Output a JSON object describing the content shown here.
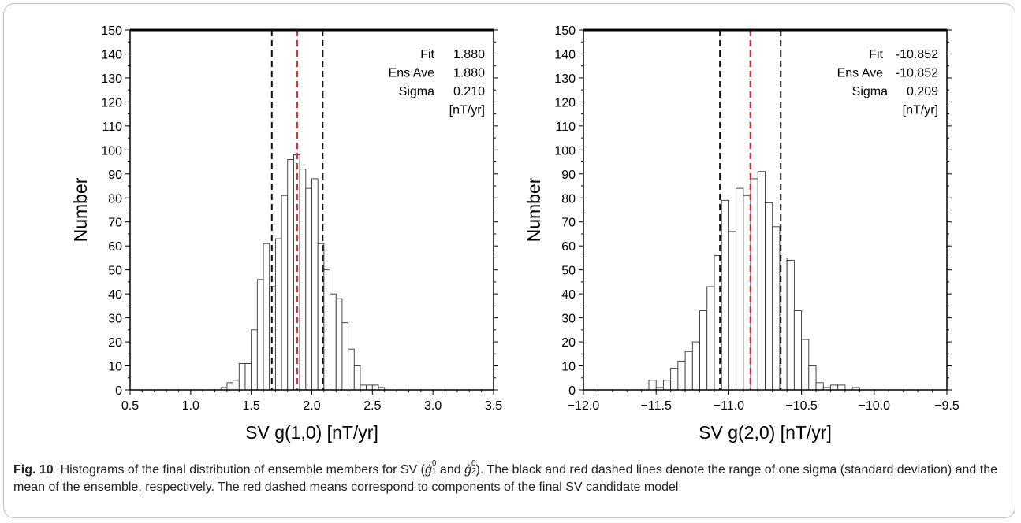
{
  "chart_data": [
    {
      "type": "bar",
      "x_min": 0.5,
      "x_max": 3.5,
      "xticks": [
        "0.5",
        "1.0",
        "1.5",
        "2.0",
        "2.5",
        "3.0",
        "3.5"
      ],
      "ylim": [
        0,
        150
      ],
      "yticks": [
        "0",
        "10",
        "20",
        "30",
        "40",
        "50",
        "60",
        "70",
        "80",
        "90",
        "100",
        "110",
        "120",
        "130",
        "140",
        "150"
      ],
      "xlabel": "SV g(1,0) [nT/yr]",
      "ylabel": "Number",
      "bin_width": 0.05,
      "bin_starts": [
        1.25,
        1.3,
        1.35,
        1.4,
        1.45,
        1.5,
        1.55,
        1.6,
        1.65,
        1.7,
        1.75,
        1.8,
        1.85,
        1.9,
        1.95,
        2.0,
        2.05,
        2.1,
        2.15,
        2.2,
        2.25,
        2.3,
        2.35,
        2.4,
        2.45,
        2.5,
        2.55
      ],
      "values": [
        1,
        3,
        4,
        11,
        11,
        25,
        46,
        61,
        43,
        63,
        81,
        96,
        98,
        92,
        84,
        88,
        61,
        50,
        40,
        38,
        28,
        17,
        10,
        2,
        2,
        2,
        1
      ],
      "lines": [
        {
          "x": 1.67,
          "color": "black",
          "style": "dashed",
          "meaning": "mean - sigma"
        },
        {
          "x": 1.88,
          "color": "red",
          "style": "dashed",
          "meaning": "mean"
        },
        {
          "x": 2.09,
          "color": "black",
          "style": "dashed",
          "meaning": "mean + sigma"
        }
      ],
      "annotation": {
        "rows": [
          [
            "Fit",
            "1.880"
          ],
          [
            "Ens Ave",
            "1.880"
          ],
          [
            "Sigma",
            "0.210"
          ]
        ],
        "unit": "[nT/yr]"
      }
    },
    {
      "type": "bar",
      "x_min": -12.0,
      "x_max": -9.5,
      "xticks": [
        "−12.0",
        "−11.5",
        "−11.0",
        "−10.5",
        "−10.0",
        "−9.5"
      ],
      "ylim": [
        0,
        150
      ],
      "yticks": [
        "0",
        "10",
        "20",
        "30",
        "40",
        "50",
        "60",
        "70",
        "80",
        "90",
        "100",
        "110",
        "120",
        "130",
        "140",
        "150"
      ],
      "xlabel": "SV g(2,0) [nT/yr]",
      "ylabel": "Number",
      "bin_width": 0.05,
      "bin_starts": [
        -11.55,
        -11.5,
        -11.45,
        -11.4,
        -11.35,
        -11.3,
        -11.25,
        -11.2,
        -11.15,
        -11.1,
        -11.05,
        -11.0,
        -10.95,
        -10.9,
        -10.85,
        -10.8,
        -10.75,
        -10.7,
        -10.65,
        -10.6,
        -10.55,
        -10.5,
        -10.45,
        -10.4,
        -10.35,
        -10.3,
        -10.25,
        -10.2,
        -10.15,
        -10.1
      ],
      "values": [
        4,
        1,
        4,
        9,
        12,
        16,
        20,
        33,
        43,
        56,
        79,
        66,
        84,
        81,
        88,
        91,
        78,
        68,
        55,
        54,
        33,
        21,
        10,
        3,
        1,
        2,
        2,
        0,
        1,
        0
      ],
      "lines": [
        {
          "x": -11.061,
          "color": "black",
          "style": "dashed",
          "meaning": "mean - sigma"
        },
        {
          "x": -10.852,
          "color": "red",
          "style": "dashed",
          "meaning": "mean"
        },
        {
          "x": -10.643,
          "color": "black",
          "style": "dashed",
          "meaning": "mean + sigma"
        }
      ],
      "annotation": {
        "rows": [
          [
            "Fit",
            "-10.852"
          ],
          [
            "Ens Ave",
            "-10.852"
          ],
          [
            "Sigma",
            "0.209"
          ]
        ],
        "unit": "[nT/yr]"
      }
    }
  ],
  "caption": {
    "label": "Fig. 10",
    "line1_a": "Histograms of the final distribution of ensemble members for SV (",
    "g1": "ġ",
    "g1_sup": "0",
    "g1_sub": "1",
    "and": " and ",
    "g2": "ġ",
    "g2_sup": "0",
    "g2_sub": "2",
    "line1_b": "). The black and red dashed lines denote the range of one sigma (standard deviation) and the mean of the ensemble, respectively. The red dashed means correspond to components of the final SV candidate model"
  }
}
